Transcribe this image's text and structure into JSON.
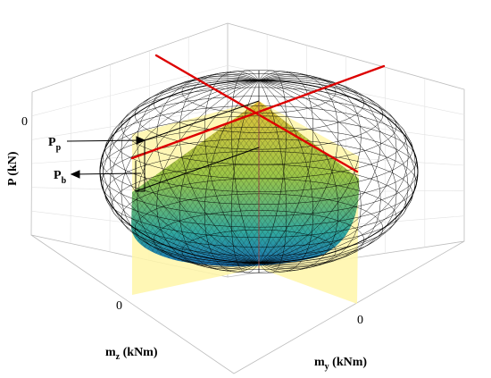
{
  "axes": {
    "p_label": "P (kN)",
    "mz_label_main": "m",
    "mz_label_sub": "z",
    "mz_label_unit": " (kNm)",
    "my_label_main": "m",
    "my_label_sub": "y",
    "my_label_unit": " (kNm)",
    "p_tick": "0",
    "mz_tick": "0",
    "my_tick": "0"
  },
  "annotations": {
    "pp_main": "P",
    "pp_sub": "p",
    "pb_main": "P",
    "pb_sub": "b"
  },
  "colors": {
    "mesh": "#000000",
    "interaction_lines": "#dd0000",
    "planes": "#fff6a8",
    "surface_top": "#d8c23a",
    "surface_mid": "#8fc24a",
    "surface_bottom": "#1e84b8"
  }
}
